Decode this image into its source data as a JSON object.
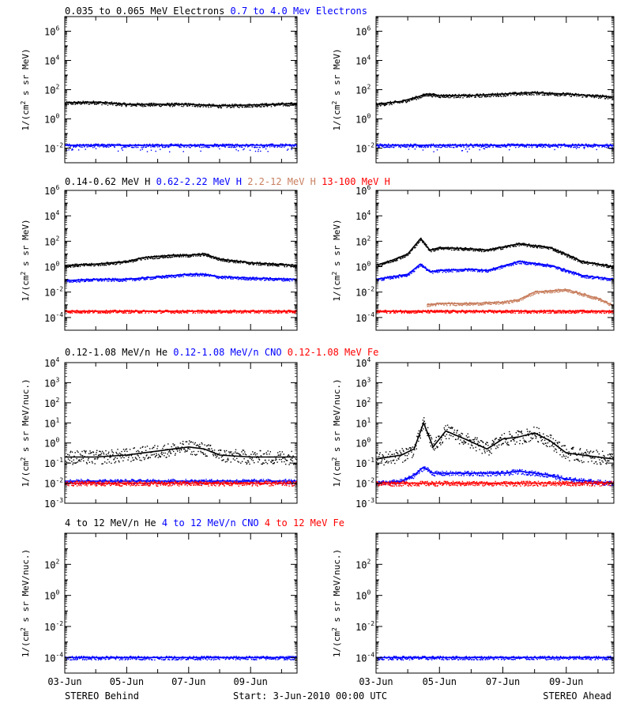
{
  "footer": {
    "left": "STEREO Behind",
    "center": "Start:  3-Jun-2010 00:00 UTC",
    "right": "STEREO Ahead"
  },
  "colors": {
    "black": "#000000",
    "blue": "#0000ff",
    "tan": "#c87f5f",
    "red": "#ff0000"
  },
  "chart_data": [
    {
      "type": "scatter",
      "panel": "electrons-behind",
      "series_titles": [
        {
          "text": "0.035 to 0.065 MeV Electrons",
          "color": "#000000"
        },
        {
          "text": "0.7 to 4.0 Mev Electrons",
          "color": "#0000ff"
        }
      ],
      "ylabel": "1/(cm2 s sr MeV)",
      "yscale": "log",
      "ylim_exp": [
        -3,
        7
      ],
      "yticks_exp": [
        -2,
        0,
        2,
        4,
        6
      ],
      "x": [
        3,
        4,
        5,
        6,
        7,
        8,
        9,
        10.5
      ],
      "series": [
        {
          "color": "#000000",
          "values_exp": [
            1.1,
            1.15,
            1.0,
            1.0,
            1.0,
            0.9,
            0.95,
            1.05
          ]
        },
        {
          "color": "#0000ff",
          "values_exp": [
            -1.8,
            -1.8,
            -1.8,
            -1.8,
            -1.8,
            -1.8,
            -1.8,
            -1.8
          ]
        }
      ]
    },
    {
      "type": "scatter",
      "panel": "electrons-ahead",
      "ylabel": "1/(cm2 s sr MeV)",
      "yscale": "log",
      "ylim_exp": [
        -3,
        7
      ],
      "yticks_exp": [
        -2,
        0,
        2,
        4,
        6
      ],
      "x": [
        3,
        3.8,
        4.3,
        4.6,
        5,
        6,
        7,
        8,
        9,
        10.5
      ],
      "series": [
        {
          "color": "#000000",
          "values_exp": [
            1.0,
            1.2,
            1.5,
            1.7,
            1.6,
            1.6,
            1.7,
            1.8,
            1.7,
            1.5
          ]
        },
        {
          "color": "#0000ff",
          "values_exp": [
            -1.8,
            -1.8,
            -1.8,
            -1.8,
            -1.8,
            -1.8,
            -1.8,
            -1.8,
            -1.8,
            -1.8
          ]
        }
      ]
    },
    {
      "type": "scatter",
      "panel": "protons-behind",
      "series_titles": [
        {
          "text": "0.14-0.62 MeV H",
          "color": "#000000"
        },
        {
          "text": "0.62-2.22 MeV H",
          "color": "#0000ff"
        },
        {
          "text": "2.2-12 MeV H",
          "color": "#c87f5f"
        },
        {
          "text": "13-100 MeV H",
          "color": "#ff0000"
        }
      ],
      "ylabel": "1/(cm2 s sr MeV)",
      "yscale": "log",
      "ylim_exp": [
        -5,
        6
      ],
      "yticks_exp": [
        -4,
        -2,
        0,
        2,
        4,
        6
      ],
      "x": [
        3,
        4,
        5,
        5.5,
        6,
        6.5,
        7,
        7.5,
        8,
        9,
        10.5
      ],
      "series": [
        {
          "color": "#000000",
          "values_exp": [
            0.1,
            0.2,
            0.4,
            0.7,
            0.8,
            0.9,
            0.9,
            1.0,
            0.6,
            0.3,
            0.1
          ]
        },
        {
          "color": "#0000ff",
          "values_exp": [
            -1.1,
            -1.0,
            -1.0,
            -0.9,
            -0.8,
            -0.7,
            -0.6,
            -0.6,
            -0.8,
            -0.9,
            -1.0
          ]
        },
        {
          "color": "#ff0000",
          "values_exp": [
            -3.5,
            -3.5,
            -3.5,
            -3.5,
            -3.5,
            -3.5,
            -3.5,
            -3.5,
            -3.5,
            -3.5,
            -3.5
          ]
        }
      ]
    },
    {
      "type": "scatter",
      "panel": "protons-ahead",
      "ylabel": "1/(cm2 s sr MeV)",
      "yscale": "log",
      "ylim_exp": [
        -5,
        6
      ],
      "yticks_exp": [
        -4,
        -2,
        0,
        2,
        4,
        6
      ],
      "x": [
        3,
        3.5,
        4,
        4.4,
        4.7,
        5,
        6,
        6.5,
        7.5,
        8.5,
        9.5,
        10.5
      ],
      "series": [
        {
          "color": "#000000",
          "values_exp": [
            0.1,
            0.5,
            1.0,
            2.2,
            1.3,
            1.5,
            1.4,
            1.3,
            1.8,
            1.5,
            0.4,
            0.0
          ]
        },
        {
          "color": "#0000ff",
          "values_exp": [
            -1.0,
            -0.8,
            -0.6,
            0.2,
            -0.4,
            -0.3,
            -0.2,
            -0.3,
            0.4,
            0.1,
            -0.7,
            -1.0
          ]
        },
        {
          "color": "#c87f5f",
          "x": [
            4.6,
            5,
            6,
            7,
            7.5,
            8,
            9,
            10,
            10.5
          ],
          "values_exp": [
            -3.0,
            -2.9,
            -2.9,
            -2.8,
            -2.6,
            -2.0,
            -1.8,
            -2.5,
            -3.1
          ]
        },
        {
          "color": "#ff0000",
          "values_exp": [
            -3.5,
            -3.5,
            -3.5,
            -3.5,
            -3.5,
            -3.5,
            -3.5,
            -3.5,
            -3.5,
            -3.5,
            -3.5,
            -3.5
          ]
        }
      ]
    },
    {
      "type": "scatter",
      "panel": "heavy-low-behind",
      "series_titles": [
        {
          "text": "0.12-1.08 MeV/n He",
          "color": "#000000"
        },
        {
          "text": "0.12-1.08 MeV/n CNO",
          "color": "#0000ff"
        },
        {
          "text": "0.12-1.08 MeV Fe",
          "color": "#ff0000"
        }
      ],
      "ylabel": "1/(cm2 s sr MeV/nuc.)",
      "yscale": "log",
      "ylim_exp": [
        -3,
        4
      ],
      "yticks_exp": [
        -3,
        -2,
        -1,
        0,
        1,
        2,
        3,
        4
      ],
      "x": [
        3,
        4,
        5,
        5.5,
        6,
        6.5,
        7,
        7.5,
        8,
        9,
        10.5
      ],
      "series": [
        {
          "color": "#000000",
          "values_exp": [
            -0.7,
            -0.7,
            -0.6,
            -0.5,
            -0.4,
            -0.3,
            -0.2,
            -0.3,
            -0.6,
            -0.7,
            -0.7
          ]
        },
        {
          "color": "#0000ff",
          "values_exp": [
            -1.9,
            -1.9,
            -1.9,
            -1.9,
            -1.9,
            -1.9,
            -1.9,
            -1.9,
            -1.9,
            -1.9,
            -1.9
          ]
        },
        {
          "color": "#ff0000",
          "values_exp": [
            -2.0,
            -2.0,
            -2.0,
            -2.0,
            -2.0,
            -2.0,
            -2.0,
            -2.0,
            -2.0,
            -2.0,
            -2.0
          ]
        }
      ]
    },
    {
      "type": "scatter",
      "panel": "heavy-low-ahead",
      "ylabel": "1/(cm2 s sr MeV/nuc.)",
      "yscale": "log",
      "ylim_exp": [
        -3,
        4
      ],
      "yticks_exp": [
        -3,
        -2,
        -1,
        0,
        1,
        2,
        3,
        4
      ],
      "x": [
        3,
        3.8,
        4.2,
        4.5,
        4.8,
        5.2,
        5.8,
        6.5,
        7,
        7.5,
        8,
        8.5,
        9,
        10.5
      ],
      "series": [
        {
          "color": "#000000",
          "values_exp": [
            -0.8,
            -0.6,
            -0.3,
            1.0,
            -0.2,
            0.6,
            0.2,
            -0.3,
            0.2,
            0.3,
            0.5,
            0.1,
            -0.5,
            -0.8
          ]
        },
        {
          "color": "#0000ff",
          "values_exp": [
            -2.0,
            -1.9,
            -1.6,
            -1.2,
            -1.5,
            -1.5,
            -1.5,
            -1.5,
            -1.5,
            -1.4,
            -1.5,
            -1.6,
            -1.8,
            -2.0
          ]
        },
        {
          "color": "#ff0000",
          "values_exp": [
            -2.0,
            -2.0,
            -2.0,
            -2.0,
            -2.0,
            -2.0,
            -2.0,
            -2.0,
            -2.0,
            -2.0,
            -2.0,
            -2.0,
            -2.0,
            -2.0
          ]
        }
      ]
    },
    {
      "type": "scatter",
      "panel": "heavy-high-behind",
      "series_titles": [
        {
          "text": "4 to 12 MeV/n He",
          "color": "#000000"
        },
        {
          "text": "4 to 12 MeV/n CNO",
          "color": "#0000ff"
        },
        {
          "text": "4 to 12 MeV Fe",
          "color": "#ff0000"
        }
      ],
      "ylabel": "1/(cm2 s sr MeV/nuc.)",
      "yscale": "log",
      "ylim_exp": [
        -5,
        4
      ],
      "yticks_exp": [
        -4,
        -2,
        0,
        2
      ],
      "x": [
        3,
        4,
        5,
        6,
        7,
        8,
        9,
        10.5
      ],
      "series": [
        {
          "color": "#0000ff",
          "values_exp": [
            -4.0,
            -4.0,
            -4.0,
            -4.0,
            -4.0,
            -4.0,
            -4.0,
            -4.0
          ]
        }
      ]
    },
    {
      "type": "scatter",
      "panel": "heavy-high-ahead",
      "ylabel": "1/(cm2 s sr MeV/nuc.)",
      "yscale": "log",
      "ylim_exp": [
        -5,
        4
      ],
      "yticks_exp": [
        -4,
        -2,
        0,
        2
      ],
      "x": [
        3,
        4,
        5,
        6,
        7,
        8,
        9,
        10.5
      ],
      "series": [
        {
          "color": "#0000ff",
          "values_exp": [
            -4.0,
            -4.0,
            -4.0,
            -4.0,
            -4.0,
            -4.0,
            -4.0,
            -4.0
          ]
        }
      ]
    }
  ],
  "xaxis": {
    "xlim": [
      3,
      10.5
    ],
    "major_days": [
      3,
      5,
      7,
      9
    ],
    "labels": [
      "03-Jun",
      "05-Jun",
      "07-Jun",
      "09-Jun"
    ]
  }
}
